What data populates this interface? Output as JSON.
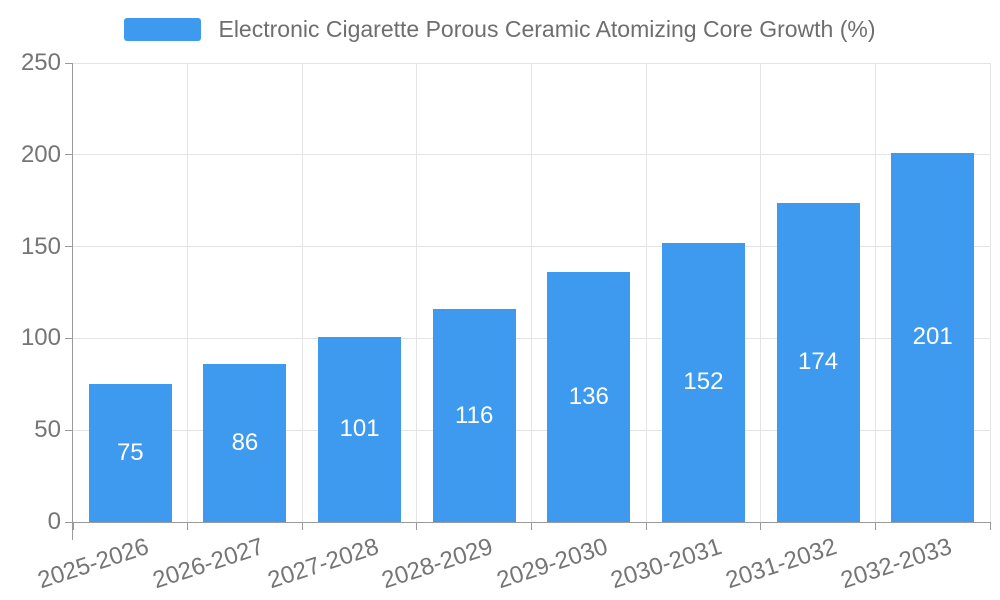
{
  "chart_data": {
    "type": "bar",
    "title": "Electronic Cigarette Porous Ceramic Atomizing Core Growth (%)",
    "legend": {
      "label": "Electronic Cigarette Porous Ceramic Atomizing Core Growth (%)",
      "position": "top-center"
    },
    "categories": [
      "2025-2026",
      "2026-2027",
      "2027-2028",
      "2028-2029",
      "2029-2030",
      "2030-2031",
      "2031-2032",
      "2032-2033"
    ],
    "values": [
      75,
      86,
      101,
      116,
      136,
      152,
      174,
      201
    ],
    "value_labels_shown": true,
    "xlabel": "",
    "ylabel": "",
    "ylim": [
      0,
      250
    ],
    "yticks": [
      0,
      50,
      100,
      150,
      200,
      250
    ],
    "grid": true,
    "colors": {
      "bar": "#3D9AEE",
      "value_label": "#FFFFFF",
      "axis_label": "#757575",
      "title": "#6E6E6E",
      "axis_line": "#9A9A9A",
      "gridline": "#E4E4E4",
      "background": "#FFFFFF"
    }
  }
}
